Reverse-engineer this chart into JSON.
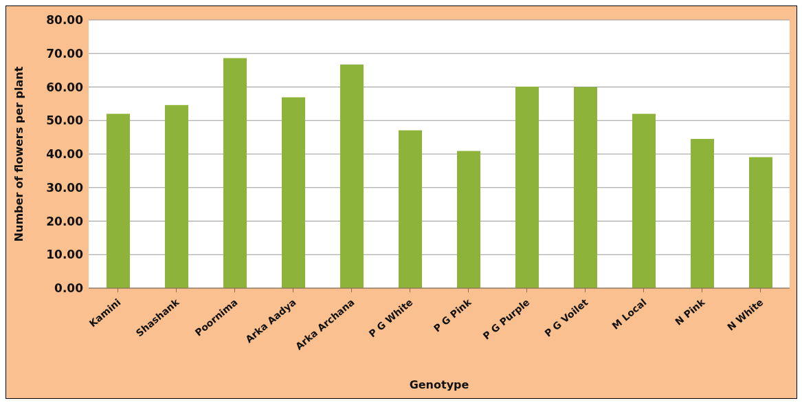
{
  "chart_data": {
    "type": "bar",
    "xlabel": "Genotype",
    "ylabel": "Number of flowers per plant",
    "categories": [
      "Kamini",
      "Shashank",
      "Poornima",
      "Arka Aadya",
      "Arka Archana",
      "P G White",
      "P G Pink",
      "P G Purple",
      "P G Voilet",
      "M Local",
      "N Pink",
      "N White"
    ],
    "values": [
      52,
      54.6,
      68.6,
      56.9,
      66.7,
      47.1,
      40.9,
      60.1,
      60,
      52,
      44.5,
      39.1
    ],
    "color": "#8db33a",
    "ylim": [
      0,
      80
    ],
    "yticks": [
      {
        "value": 0,
        "label": "0.00"
      },
      {
        "value": 10,
        "label": "10.00"
      },
      {
        "value": 20,
        "label": "20.00"
      },
      {
        "value": 30,
        "label": "30.00"
      },
      {
        "value": 40,
        "label": "40.00"
      },
      {
        "value": 50,
        "label": "50.00"
      },
      {
        "value": 60,
        "label": "60.00"
      },
      {
        "value": 70,
        "label": "70.00"
      },
      {
        "value": 80,
        "label": "80.00"
      }
    ],
    "grid": "y"
  }
}
